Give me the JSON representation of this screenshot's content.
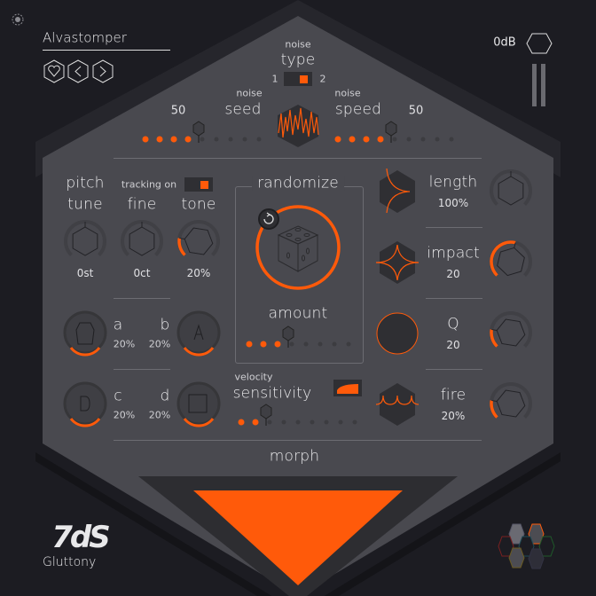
{
  "header": {
    "preset_name": "Alvastomper",
    "buttons": [
      {
        "name": "favorite",
        "icon": "heart-icon"
      },
      {
        "name": "previous-preset",
        "icon": "chevron-left-icon"
      },
      {
        "name": "next-preset",
        "icon": "chevron-right-icon"
      }
    ],
    "output_gain": "0dB"
  },
  "noise": {
    "type_small": "noise",
    "type_label": "type",
    "type_option_1": "1",
    "type_option_2": "2",
    "type_selected": 2,
    "seed_small": "noise",
    "seed_label": "seed",
    "seed_value": "50",
    "seed_level": 0.5,
    "speed_small": "noise",
    "speed_label": "speed",
    "speed_value": "50",
    "speed_level": 0.5
  },
  "pitch": {
    "label": "pitch",
    "tracking_label": "tracking on",
    "tracking_on": true,
    "knobs": [
      {
        "label": "tune",
        "value": "0st",
        "level": 0.5
      },
      {
        "label": "fine",
        "value": "0ct",
        "level": 0.5
      },
      {
        "label": "tone",
        "value": "20%",
        "level": 0.2
      }
    ]
  },
  "samples": {
    "a": {
      "label": "a",
      "value": "20%"
    },
    "b": {
      "label": "b",
      "value": "20%"
    },
    "c": {
      "label": "c",
      "value": "20%"
    },
    "d": {
      "label": "d",
      "value": "20%"
    }
  },
  "randomize": {
    "title": "randomize",
    "amount_label": "amount",
    "amount_level": 0.45
  },
  "velocity": {
    "small": "velocity",
    "label": "sensitivity",
    "level": 0.2
  },
  "envelope": [
    {
      "label": "length",
      "value": "100%",
      "icon": "length-curve-icon",
      "level": 0.5
    },
    {
      "label": "impact",
      "value": "20",
      "icon": "impact-star-icon",
      "level": 0.55
    },
    {
      "label": "Q",
      "value": "20",
      "icon": "q-circle-icon",
      "level": 0.2
    },
    {
      "label": "fire",
      "value": "20%",
      "icon": "fire-wave-icon",
      "level": 0.2
    }
  ],
  "morph": {
    "label": "morph"
  },
  "brand": {
    "logo": "7dS",
    "product": "Gluttony"
  },
  "colors": {
    "accent": "#ff5a0a",
    "panel": "#49494f",
    "background": "#1c1c22"
  }
}
